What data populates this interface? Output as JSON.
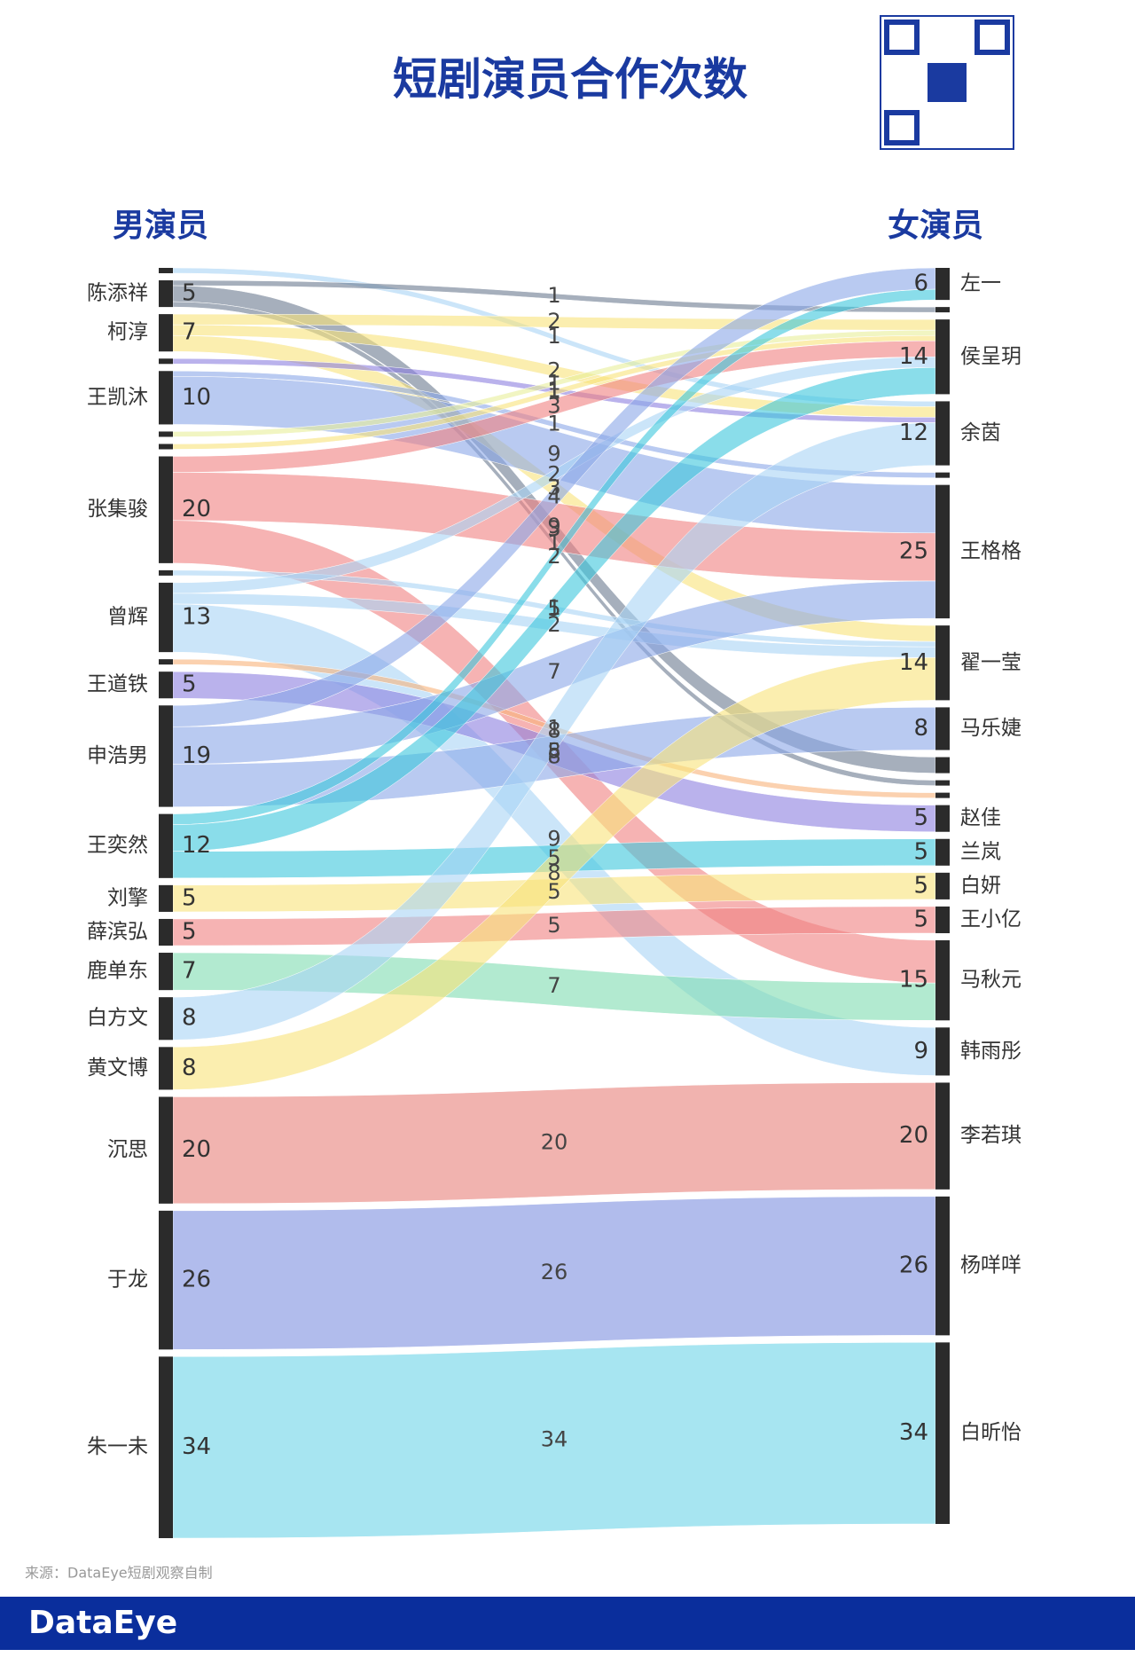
{
  "chart_data": {
    "type": "sankey",
    "title": "短剧演员合作次数",
    "left_title": "男演员",
    "right_title": "女演员",
    "source_note": "来源：DataEye短剧观察自制",
    "brand": "DataEye",
    "nodes_left": [
      {
        "name": null,
        "value": 1
      },
      {
        "name": "陈添祥",
        "value": 5
      },
      {
        "name": "柯淳",
        "value": 7
      },
      {
        "name": null,
        "value": 1
      },
      {
        "name": "王凯沐",
        "value": 10
      },
      {
        "name": null,
        "value": 1
      },
      {
        "name": null,
        "value": 1
      },
      {
        "name": "张集骏",
        "value": 20
      },
      {
        "name": null,
        "value": 1
      },
      {
        "name": "曾辉",
        "value": 13
      },
      {
        "name": null,
        "value": 1
      },
      {
        "name": "王道铁",
        "value": 5
      },
      {
        "name": "申浩男",
        "value": 19
      },
      {
        "name": "王奕然",
        "value": 12
      },
      {
        "name": "刘擎",
        "value": 5
      },
      {
        "name": "薛滨弘",
        "value": 5
      },
      {
        "name": "鹿单东",
        "value": 7
      },
      {
        "name": "白方文",
        "value": 8
      },
      {
        "name": "黄文博",
        "value": 8
      },
      {
        "name": "沉思",
        "value": 20
      },
      {
        "name": "于龙",
        "value": 26
      },
      {
        "name": "朱一未",
        "value": 34
      }
    ],
    "nodes_right": [
      {
        "name": "左一",
        "value": 6
      },
      {
        "name": null,
        "value": 1
      },
      {
        "name": "侯呈玥",
        "value": 14
      },
      {
        "name": "余茵",
        "value": 12
      },
      {
        "name": null,
        "value": 1
      },
      {
        "name": "王格格",
        "value": 25
      },
      {
        "name": "翟一莹",
        "value": 14
      },
      {
        "name": "马乐婕",
        "value": 8
      },
      {
        "name": null,
        "value": 3
      },
      {
        "name": null,
        "value": 1
      },
      {
        "name": null,
        "value": 1
      },
      {
        "name": "赵佳",
        "value": 5
      },
      {
        "name": "兰岚",
        "value": 5
      },
      {
        "name": "白妍",
        "value": 5
      },
      {
        "name": "王小亿",
        "value": 5
      },
      {
        "name": "马秋元",
        "value": 15
      },
      {
        "name": "韩雨彤",
        "value": 9
      },
      {
        "name": "李若琪",
        "value": 20
      },
      {
        "name": "杨咩咩",
        "value": 26
      },
      {
        "name": "白昕怡",
        "value": 34
      }
    ],
    "links": [
      {
        "source": 0,
        "target": 3,
        "value": 1,
        "color": "#a9d3f5"
      },
      {
        "source": 1,
        "target": 1,
        "value": 1,
        "color": "#6b7a90"
      },
      {
        "source": 1,
        "target": 8,
        "value": 3,
        "color": "#6b7a90"
      },
      {
        "source": 1,
        "target": 9,
        "value": 1,
        "color": "#6b7a90"
      },
      {
        "source": 2,
        "target": 2,
        "value": 2,
        "color": "#f9e27a"
      },
      {
        "source": 2,
        "target": 3,
        "value": 2,
        "color": "#f9e27a"
      },
      {
        "source": 2,
        "target": 6,
        "value": 3,
        "color": "#f9e27a"
      },
      {
        "source": 3,
        "target": 3,
        "value": 1,
        "color": "#8c7fe0"
      },
      {
        "source": 4,
        "target": 4,
        "value": 1,
        "color": "#8aa6e8"
      },
      {
        "source": 4,
        "target": 5,
        "value": 9,
        "color": "#8aa6e8"
      },
      {
        "source": 5,
        "target": 2,
        "value": 1,
        "color": "#e8ef9a"
      },
      {
        "source": 6,
        "target": 2,
        "value": 1,
        "color": "#f9e27a"
      },
      {
        "source": 7,
        "target": 2,
        "value": 3,
        "color": "#f08080"
      },
      {
        "source": 7,
        "target": 5,
        "value": 9,
        "color": "#f08080"
      },
      {
        "source": 7,
        "target": 15,
        "value": 8,
        "color": "#f08080"
      },
      {
        "source": 8,
        "target": 6,
        "value": 1,
        "color": "#a9d3f5"
      },
      {
        "source": 9,
        "target": 2,
        "value": 2,
        "color": "#a9d3f5"
      },
      {
        "source": 9,
        "target": 6,
        "value": 2,
        "color": "#a9d3f5"
      },
      {
        "source": 9,
        "target": 16,
        "value": 9,
        "color": "#a9d3f5"
      },
      {
        "source": 10,
        "target": 10,
        "value": 1,
        "color": "#f9b27a"
      },
      {
        "source": 11,
        "target": 11,
        "value": 5,
        "color": "#8c7fe0"
      },
      {
        "source": 12,
        "target": 0,
        "value": 4,
        "color": "#8aa6e8"
      },
      {
        "source": 12,
        "target": 5,
        "value": 7,
        "color": "#8aa6e8"
      },
      {
        "source": 12,
        "target": 7,
        "value": 8,
        "color": "#8aa6e8"
      },
      {
        "source": 13,
        "target": 0,
        "value": 2,
        "color": "#3cc6dc"
      },
      {
        "source": 13,
        "target": 2,
        "value": 5,
        "color": "#3cc6dc"
      },
      {
        "source": 13,
        "target": 12,
        "value": 5,
        "color": "#3cc6dc"
      },
      {
        "source": 14,
        "target": 13,
        "value": 5,
        "color": "#f9e27a"
      },
      {
        "source": 15,
        "target": 14,
        "value": 5,
        "color": "#f08080"
      },
      {
        "source": 16,
        "target": 15,
        "value": 7,
        "color": "#7fdcb0"
      },
      {
        "source": 17,
        "target": 3,
        "value": 8,
        "color": "#a9d3f5"
      },
      {
        "source": 18,
        "target": 6,
        "value": 8,
        "color": "#f9e27a"
      },
      {
        "source": 19,
        "target": 17,
        "value": 20,
        "color": "#e8807a"
      },
      {
        "source": 20,
        "target": 18,
        "value": 26,
        "color": "#7d8fe0"
      },
      {
        "source": 21,
        "target": 19,
        "value": 34,
        "color": "#6dd4e8"
      }
    ]
  }
}
